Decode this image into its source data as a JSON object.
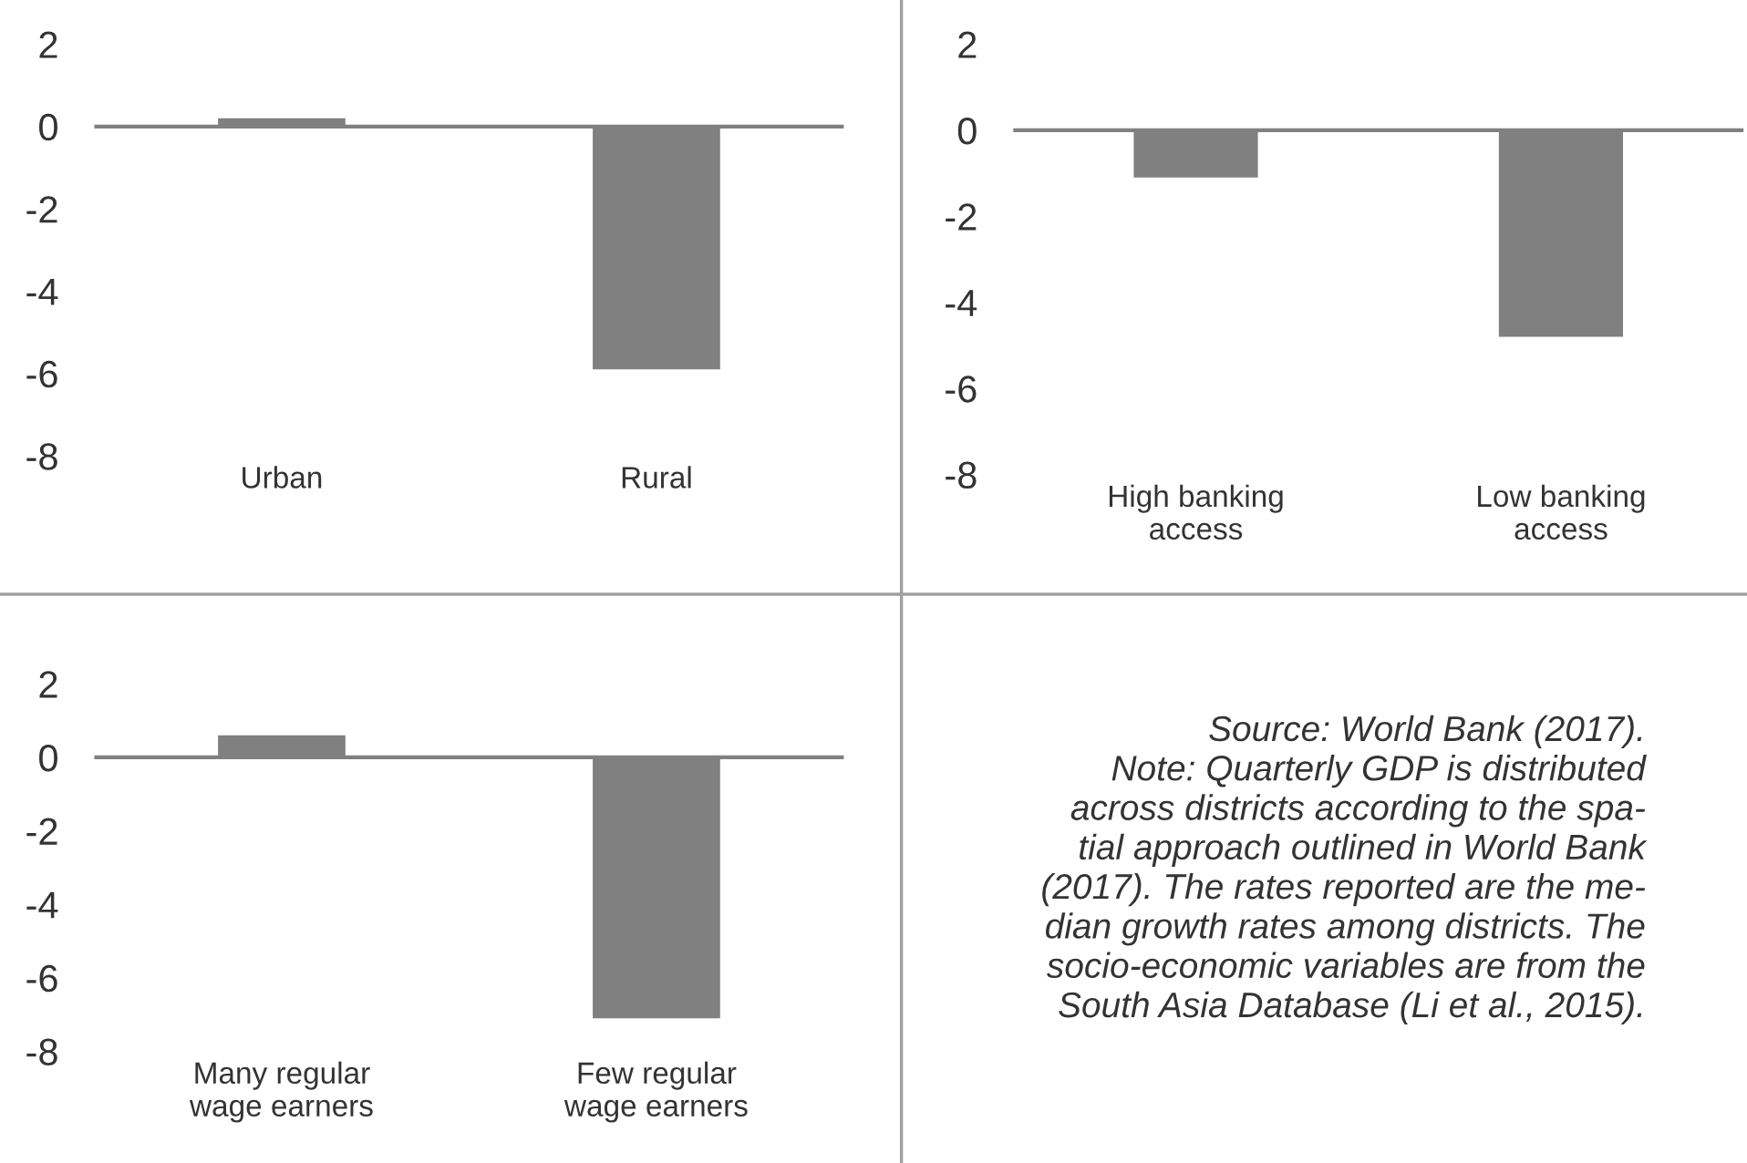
{
  "chart_data": [
    {
      "type": "bar",
      "categories": [
        "Urban",
        "Rural"
      ],
      "values": [
        0.2,
        -5.9
      ],
      "color": "#808080",
      "ylim": [
        -8,
        2
      ],
      "yticks": [
        -8,
        -6,
        -4,
        -2,
        0,
        2
      ],
      "ref_lines": [
        {
          "axis": "y",
          "value": 0,
          "color": "#808080"
        }
      ]
    },
    {
      "type": "bar",
      "categories": [
        "High banking\naccess",
        "Low banking\naccess"
      ],
      "values": [
        -1.1,
        -4.8
      ],
      "color": "#808080",
      "ylim": [
        -8,
        2
      ],
      "yticks": [
        -8,
        -6,
        -4,
        -2,
        0,
        2
      ],
      "ref_lines": [
        {
          "axis": "y",
          "value": 0,
          "color": "#808080"
        }
      ]
    },
    {
      "type": "bar",
      "categories": [
        "Many regular\nwage earners",
        "Few regular\nwage earners"
      ],
      "values": [
        0.6,
        -7.1
      ],
      "color": "#808080",
      "ylim": [
        -8,
        2
      ],
      "yticks": [
        -8,
        -6,
        -4,
        -2,
        0,
        2
      ],
      "ref_lines": [
        {
          "axis": "y",
          "value": 0,
          "color": "#808080"
        }
      ]
    },
    {
      "type": "other",
      "annotations": [
        "Source: World Bank (2017).\nNote: Quarterly GDP is distributed\nacross districts according to the spa-\ntial approach outlined in World Bank\n(2017). The rates reported are the me-\ndian growth rates among districts. The\nsocio-economic variables are from the\nSouth Asia Database (Li et al., 2015)."
      ]
    }
  ]
}
